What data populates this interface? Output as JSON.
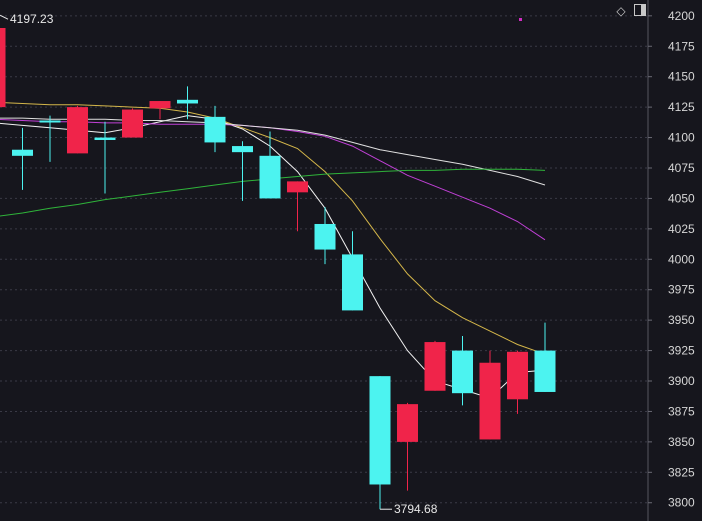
{
  "chart_data": {
    "type": "candlestick",
    "y_axis": {
      "min": 3785,
      "max": 4213,
      "ticks": [
        4200,
        4175,
        4150,
        4125,
        4100,
        4075,
        4050,
        4025,
        4000,
        3975,
        3950,
        3925,
        3900,
        3875,
        3850,
        3825,
        3800
      ]
    },
    "grid": true,
    "colors": {
      "up": "#f0244a",
      "down": "#4cf3f0",
      "background": "#16161d",
      "grid": "#3a3a46"
    },
    "candles": [
      {
        "o": 4125,
        "h": 4197.23,
        "l": 4118,
        "c": 4190
      },
      {
        "o": 4090,
        "h": 4108,
        "l": 4057,
        "c": 4085
      },
      {
        "o": 4114,
        "h": 4118,
        "l": 4080,
        "c": 4113
      },
      {
        "o": 4087,
        "h": 4126,
        "l": 4087,
        "c": 4125
      },
      {
        "o": 4100,
        "h": 4113,
        "l": 4054,
        "c": 4098
      },
      {
        "o": 4100,
        "h": 4124,
        "l": 4100,
        "c": 4123
      },
      {
        "o": 4124,
        "h": 4130,
        "l": 4115,
        "c": 4130
      },
      {
        "o": 4131,
        "h": 4142,
        "l": 4115,
        "c": 4128
      },
      {
        "o": 4117,
        "h": 4126,
        "l": 4088,
        "c": 4096
      },
      {
        "o": 4093,
        "h": 4097,
        "l": 4048,
        "c": 4088
      },
      {
        "o": 4085,
        "h": 4105,
        "l": 4050,
        "c": 4050
      },
      {
        "o": 4055,
        "h": 4064,
        "l": 4023,
        "c": 4064
      },
      {
        "o": 4029,
        "h": 4043,
        "l": 3996,
        "c": 4008
      },
      {
        "o": 4004,
        "h": 4023,
        "l": 3958,
        "c": 3958
      },
      {
        "o": 3904,
        "h": 3904,
        "l": 3794.68,
        "c": 3815
      },
      {
        "o": 3850,
        "h": 3882,
        "l": 3810,
        "c": 3881
      },
      {
        "o": 3892,
        "h": 3933,
        "l": 3892,
        "c": 3932
      },
      {
        "o": 3925,
        "h": 3937,
        "l": 3880,
        "c": 3890
      },
      {
        "o": 3852,
        "h": 3925,
        "l": 3852,
        "c": 3915
      },
      {
        "o": 3885,
        "h": 3925,
        "l": 3873,
        "c": 3924
      },
      {
        "o": 3925,
        "h": 3948,
        "l": 3891,
        "c": 3891
      }
    ],
    "moving_averages": [
      {
        "color": "#f2f2f2",
        "values": [
          4112,
          4110,
          4108,
          4106,
          4104,
          4108,
          4113,
          4118,
          4115,
          4107,
          4093,
          4072,
          4042,
          4001,
          3960,
          3925,
          3900,
          3893,
          3886,
          3907,
          3909
        ]
      },
      {
        "color": "#d4b64a",
        "values": [
          4129,
          4128,
          4127,
          4127,
          4126,
          4125,
          4124,
          4121,
          4116,
          4108,
          4100,
          4091,
          4072,
          4048,
          4017,
          3988,
          3966,
          3952,
          3941,
          3930,
          3922
        ]
      },
      {
        "color": "#c040d6",
        "values": [
          4115,
          4114,
          4113,
          4113,
          4112,
          4112,
          4111,
          4111,
          4111,
          4110,
          4108,
          4105,
          4101,
          4093,
          4081,
          4069,
          4060,
          4051,
          4042,
          4031,
          4016
        ]
      },
      {
        "color": "#e0e0e0",
        "values": [
          4116,
          4116,
          4115,
          4115,
          4115,
          4114,
          4114,
          4113,
          4112,
          4110,
          4108,
          4106,
          4102,
          4096,
          4090,
          4086,
          4082,
          4078,
          4073,
          4068,
          4061
        ]
      },
      {
        "color": "#2fb43a",
        "values": [
          4035,
          4038,
          4042,
          4045,
          4049,
          4052,
          4055,
          4058,
          4061,
          4064,
          4066,
          4068,
          4070,
          4071,
          4072,
          4073,
          4073,
          4074,
          4074,
          4074,
          4073
        ]
      }
    ],
    "annotations": {
      "high_label": "4197.23",
      "low_label": "3794.68"
    }
  }
}
